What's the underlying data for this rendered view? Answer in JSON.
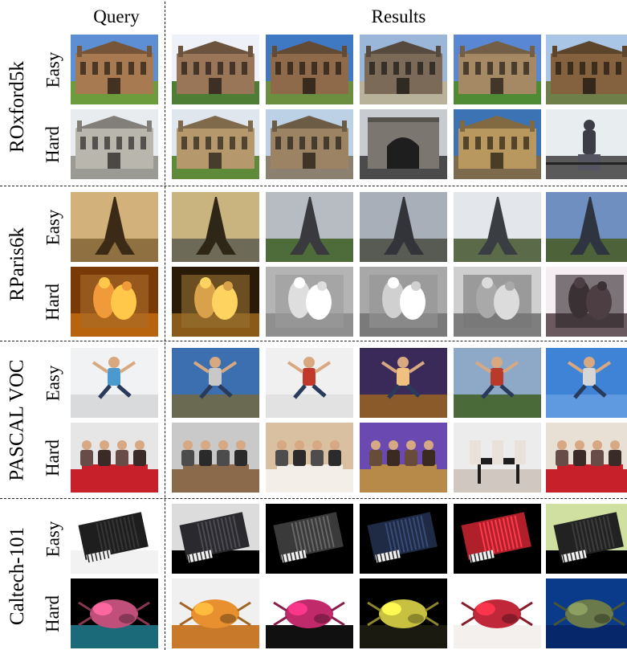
{
  "headers": {
    "query": "Query",
    "results": "Results"
  },
  "difficulty_levels": [
    "Easy",
    "Hard"
  ],
  "datasets": [
    {
      "name": "ROxford5k",
      "rows": [
        {
          "difficulty": "Easy",
          "images": [
            {
              "role": "query",
              "subject": "building",
              "sky": "#5d8fd4",
              "ground": "#6c9c3c",
              "color": "#a87a52"
            },
            {
              "role": "result",
              "subject": "building",
              "sky": "#eef2f8",
              "ground": "#4e7d36",
              "color": "#9a7659"
            },
            {
              "role": "result",
              "subject": "building",
              "sky": "#3f79c4",
              "ground": "#6c8f3f",
              "color": "#8e6a4a"
            },
            {
              "role": "result",
              "subject": "building",
              "sky": "#9ab6d8",
              "ground": "#b9b29a",
              "color": "#7b6a58"
            },
            {
              "role": "result",
              "subject": "building",
              "sky": "#5a87d3",
              "ground": "#4f8a34",
              "color": "#a58864"
            },
            {
              "role": "result",
              "subject": "building",
              "sky": "#a9c6e6",
              "ground": "#6f7f4a",
              "color": "#85623f"
            }
          ]
        },
        {
          "difficulty": "Hard",
          "images": [
            {
              "role": "query",
              "subject": "building",
              "sky": "#e9ecef",
              "ground": "#9b9a94",
              "color": "#b9b6ae"
            },
            {
              "role": "result",
              "subject": "building",
              "sky": "#dfe6ee",
              "ground": "#5e8a3a",
              "color": "#b5986c"
            },
            {
              "role": "result",
              "subject": "building",
              "sky": "#bcd0e6",
              "ground": "#8c8070",
              "color": "#9c8363"
            },
            {
              "role": "result",
              "subject": "archway",
              "sky": "#c8ccd0",
              "ground": "#4b4b4b",
              "color": "#7c7670"
            },
            {
              "role": "result",
              "subject": "building",
              "sky": "#3c73b5",
              "ground": "#7e6a4c",
              "color": "#b8985e"
            },
            {
              "role": "result",
              "subject": "statue",
              "sky": "#e8edf0",
              "ground": "#5a5a5a",
              "color": "#3d3d46"
            }
          ]
        }
      ]
    },
    {
      "name": "RParis6k",
      "rows": [
        {
          "difficulty": "Easy",
          "images": [
            {
              "role": "query",
              "subject": "tower",
              "sky": "#d2b27a",
              "ground": "#8f7040",
              "color": "#3b2a16"
            },
            {
              "role": "result",
              "subject": "tower",
              "sky": "#c9b37e",
              "ground": "#6e6a58",
              "color": "#2e2616"
            },
            {
              "role": "result",
              "subject": "tower",
              "sky": "#b7bcc3",
              "ground": "#4e6b3a",
              "color": "#3a3a3e"
            },
            {
              "role": "result",
              "subject": "tower",
              "sky": "#a9afb8",
              "ground": "#585a54",
              "color": "#33343a"
            },
            {
              "role": "result",
              "subject": "tower",
              "sky": "#e3e6ea",
              "ground": "#5b6a48",
              "color": "#3a3d42"
            },
            {
              "role": "result",
              "subject": "tower",
              "sky": "#6f8fc1",
              "ground": "#4d6238",
              "color": "#2e3440"
            }
          ]
        },
        {
          "difficulty": "Hard",
          "images": [
            {
              "role": "query",
              "subject": "relief",
              "sky": "#7a3a08",
              "ground": "#b8640f",
              "color": "#f09a3a"
            },
            {
              "role": "result",
              "subject": "relief",
              "sky": "#2a1a08",
              "ground": "#8a5a18",
              "color": "#d9a24a"
            },
            {
              "role": "result",
              "subject": "relief",
              "sky": "#b4b4b4",
              "ground": "#8f8f8f",
              "color": "#dedede"
            },
            {
              "role": "result",
              "subject": "relief",
              "sky": "#a8a8a8",
              "ground": "#7a7a7a",
              "color": "#d0d0d0"
            },
            {
              "role": "result",
              "subject": "relief",
              "sky": "#cfcfcf",
              "ground": "#7e7e7e",
              "color": "#a9a9a9"
            },
            {
              "role": "result",
              "subject": "relief",
              "sky": "#f4eef2",
              "ground": "#6a5a60",
              "color": "#3b3034"
            }
          ]
        }
      ]
    },
    {
      "name": "PASCAL VOC",
      "rows": [
        {
          "difficulty": "Easy",
          "images": [
            {
              "role": "query",
              "subject": "jumper",
              "sky": "#f0f2f4",
              "ground": "#d8dadc",
              "color": "#4a9ad0"
            },
            {
              "role": "result",
              "subject": "jumper",
              "sky": "#3c6fb0",
              "ground": "#6a6a52",
              "color": "#c8c8c8"
            },
            {
              "role": "result",
              "subject": "jumper",
              "sky": "#f0f0f0",
              "ground": "#e2e2e2",
              "color": "#c0392b"
            },
            {
              "role": "result",
              "subject": "jumper",
              "sky": "#3a2a5a",
              "ground": "#8a5a2a",
              "color": "#f0c080"
            },
            {
              "role": "result",
              "subject": "jumper",
              "sky": "#8ea8c8",
              "ground": "#4b6a3a",
              "color": "#b83a2a"
            },
            {
              "role": "result",
              "subject": "jumper",
              "sky": "#3e83d6",
              "ground": "#5f9ae0",
              "color": "#d6d6d6"
            }
          ]
        },
        {
          "difficulty": "Hard",
          "images": [
            {
              "role": "query",
              "subject": "people",
              "sky": "#e6e6e6",
              "ground": "#c8202a",
              "color": "#3a2a28"
            },
            {
              "role": "result",
              "subject": "people",
              "sky": "#c9c9c9",
              "ground": "#8a6a4a",
              "color": "#2a2a2a"
            },
            {
              "role": "result",
              "subject": "people",
              "sky": "#d8c0a0",
              "ground": "#f3efe8",
              "color": "#2b2b2b"
            },
            {
              "role": "result",
              "subject": "people",
              "sky": "#6a4ab0",
              "ground": "#b88a4a",
              "color": "#3a2a20"
            },
            {
              "role": "result",
              "subject": "table",
              "sky": "#ececec",
              "ground": "#d0c8c0",
              "color": "#e8e2da"
            },
            {
              "role": "result",
              "subject": "people",
              "sky": "#e8e0d4",
              "ground": "#c8202a",
              "color": "#3a2a28"
            }
          ]
        }
      ]
    },
    {
      "name": "Caltech-101",
      "rows": [
        {
          "difficulty": "Easy",
          "images": [
            {
              "role": "query",
              "subject": "accordion",
              "sky": "#ffffff",
              "ground": "#f2f2f2",
              "color": "#1e1e1e"
            },
            {
              "role": "result",
              "subject": "accordion",
              "sky": "#dcdcdc",
              "ground": "#000000",
              "color": "#2a2a2e"
            },
            {
              "role": "result",
              "subject": "accordion",
              "sky": "#000000",
              "ground": "#000000",
              "color": "#3a3a3a"
            },
            {
              "role": "result",
              "subject": "accordion",
              "sky": "#000000",
              "ground": "#000000",
              "color": "#1f2a44"
            },
            {
              "role": "result",
              "subject": "accordion",
              "sky": "#000000",
              "ground": "#000000",
              "color": "#b0202a"
            },
            {
              "role": "result",
              "subject": "accordion",
              "sky": "#cfe0a0",
              "ground": "#000000",
              "color": "#222222"
            }
          ]
        },
        {
          "difficulty": "Hard",
          "images": [
            {
              "role": "query",
              "subject": "creature",
              "sky": "#000000",
              "ground": "#1a6a7a",
              "color": "#c0507a"
            },
            {
              "role": "result",
              "subject": "creature",
              "sky": "#f0f0f0",
              "ground": "#c87a2a",
              "color": "#e89030"
            },
            {
              "role": "result",
              "subject": "creature",
              "sky": "#ffffff",
              "ground": "#101010",
              "color": "#c02a6a"
            },
            {
              "role": "result",
              "subject": "creature",
              "sky": "#000000",
              "ground": "#1a1a10",
              "color": "#c8c040"
            },
            {
              "role": "result",
              "subject": "creature",
              "sky": "#ffffff",
              "ground": "#f4f0ee",
              "color": "#c0283a"
            },
            {
              "role": "result",
              "subject": "creature",
              "sky": "#0a3a8a",
              "ground": "#06286a",
              "color": "#6a7a4a"
            }
          ]
        }
      ]
    }
  ]
}
